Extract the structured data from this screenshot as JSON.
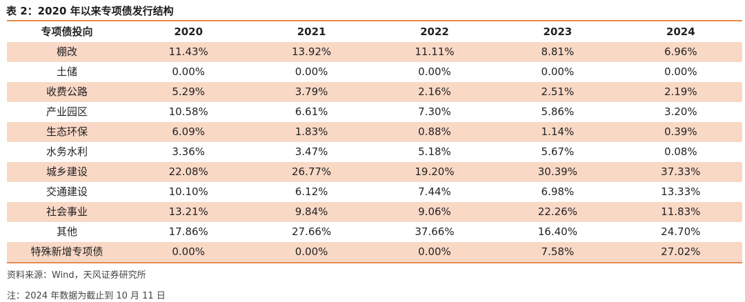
{
  "title": "表 2：2020 年以来专项债发行结构",
  "table": {
    "headers": [
      "专项债投向",
      "2020",
      "2021",
      "2022",
      "2023",
      "2024"
    ],
    "rows": [
      [
        "棚改",
        "11.43%",
        "13.92%",
        "11.11%",
        "8.81%",
        "6.96%"
      ],
      [
        "土储",
        "0.00%",
        "0.00%",
        "0.00%",
        "0.00%",
        "0.00%"
      ],
      [
        "收费公路",
        "5.29%",
        "3.79%",
        "2.16%",
        "2.51%",
        "2.19%"
      ],
      [
        "产业园区",
        "10.58%",
        "6.61%",
        "7.30%",
        "5.86%",
        "3.20%"
      ],
      [
        "生态环保",
        "6.09%",
        "1.83%",
        "0.88%",
        "1.14%",
        "0.39%"
      ],
      [
        "水务水利",
        "3.36%",
        "3.47%",
        "5.18%",
        "5.67%",
        "0.08%"
      ],
      [
        "城乡建设",
        "22.08%",
        "26.77%",
        "19.20%",
        "30.39%",
        "37.33%"
      ],
      [
        "交通建设",
        "10.10%",
        "6.12%",
        "7.44%",
        "6.98%",
        "13.33%"
      ],
      [
        "社会事业",
        "13.21%",
        "9.84%",
        "9.06%",
        "22.26%",
        "11.83%"
      ],
      [
        "其他",
        "17.86%",
        "27.66%",
        "37.66%",
        "16.40%",
        "24.70%"
      ],
      [
        "特殊新增专项债",
        "0.00%",
        "0.00%",
        "0.00%",
        "7.58%",
        "27.02%"
      ]
    ]
  },
  "source": "资料来源：Wind，天风证券研究所",
  "note": "注：2024 年数据为截止到 10 月 11 日",
  "colors": {
    "accent_rule": "#e98a4f",
    "row_shade": "#f9d8c6"
  }
}
